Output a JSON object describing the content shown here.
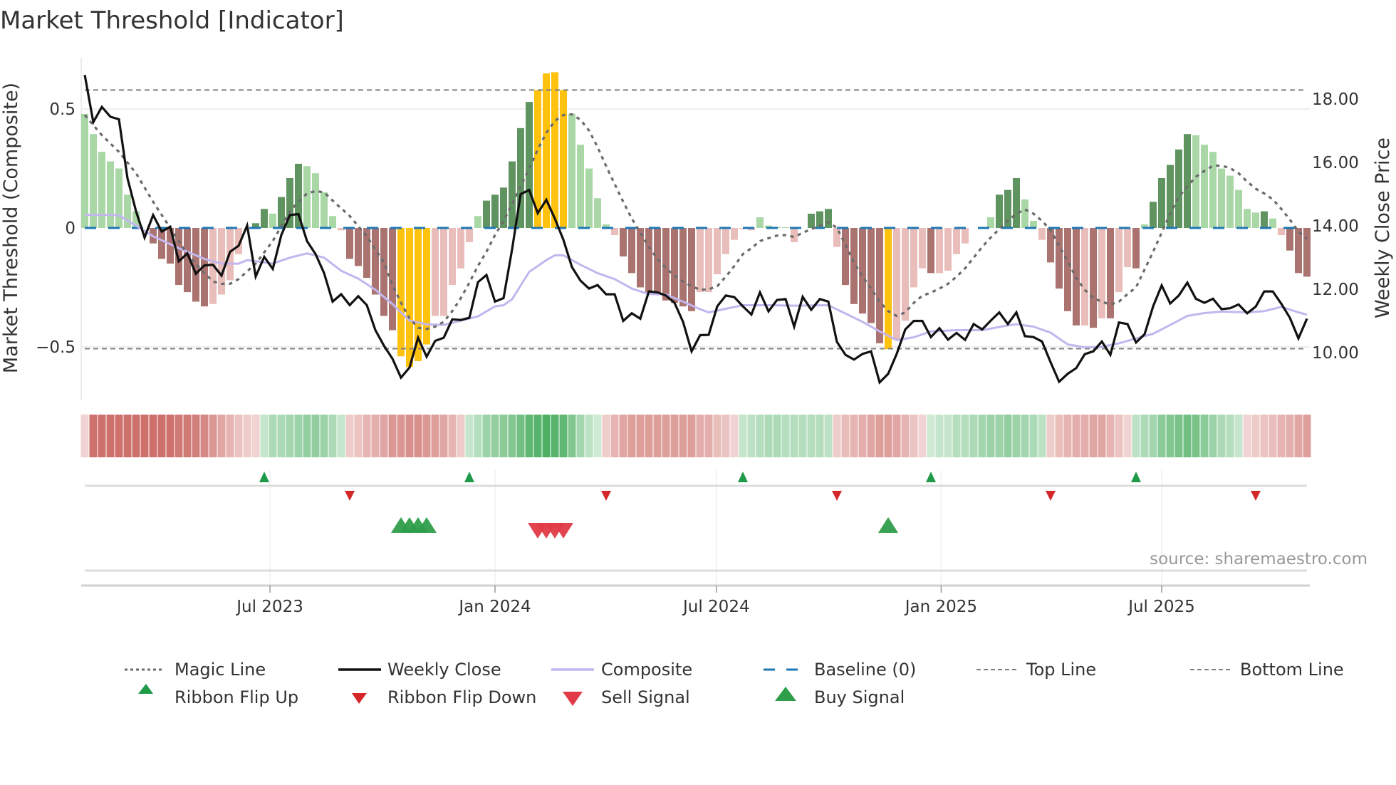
{
  "title": "Market Threshold [Indicator]",
  "source": "source: sharemaestro.com",
  "chart_data": {
    "type": "bar",
    "title": "Market Threshold [Indicator]",
    "x_unit": "week index",
    "xlabel": "",
    "ylabel_left": "Market Threshold (Composite)",
    "ylabel_right": "Weekly Close Price",
    "ylim_left": [
      -0.725,
      0.716
    ],
    "ylim_right": [
      8.49,
      19.3
    ],
    "left_ticks": [
      {
        "v": 0.5,
        "label": "0.5"
      },
      {
        "v": 0,
        "label": "0"
      },
      {
        "v": -0.5,
        "label": "−0.5"
      }
    ],
    "right_ticks": [
      {
        "v": 18,
        "label": "18.00"
      },
      {
        "v": 16,
        "label": "16.00"
      },
      {
        "v": 14,
        "label": "14.00"
      },
      {
        "v": 12,
        "label": "12.00"
      },
      {
        "v": 10,
        "label": "10.00"
      }
    ],
    "x_ticks": [
      {
        "v": 21.67,
        "label": "Jul 2023"
      },
      {
        "v": 48,
        "label": "Jan 2024"
      },
      {
        "v": 73.9,
        "label": "Jul 2024"
      },
      {
        "v": 100.2,
        "label": "Jan 2025"
      },
      {
        "v": 126,
        "label": "Jul 2025"
      }
    ],
    "top_line": 0.58,
    "bottom_line": -0.508,
    "baseline": 0,
    "colors": {
      "g": "#a9d8a6",
      "G": "#5f9460",
      "r": "#e9bdb9",
      "R": "#aa7370",
      "Y": "#ffc20e",
      "n": "#ffffff",
      "close": "#111111",
      "composite": "#c3b6ee",
      "magic": "#6b6b6b",
      "baseline": "#1f77b4",
      "bounds": "#808080",
      "flip_up": "#1e9a48",
      "flip_down": "#d62728",
      "buy": "#2e9e4a",
      "sell": "#e23b47"
    },
    "composite_bars": [
      0.48,
      0.395,
      0.32,
      0.28,
      0.25,
      0.14,
      0.07,
      0,
      -0.065,
      -0.13,
      -0.15,
      -0.24,
      -0.27,
      -0.31,
      -0.33,
      -0.32,
      -0.28,
      -0.22,
      -0.11,
      0,
      0.02,
      0.08,
      0.06,
      0.13,
      0.21,
      0.27,
      0.26,
      0.23,
      0.15,
      0.05,
      -0.01,
      -0.13,
      -0.16,
      -0.21,
      -0.28,
      -0.37,
      -0.43,
      -0.54,
      -0.585,
      -0.56,
      -0.49,
      -0.37,
      -0.37,
      -0.24,
      -0.17,
      -0.06,
      0.05,
      0.115,
      0.14,
      0.17,
      0.28,
      0.42,
      0.53,
      0.58,
      0.65,
      0.655,
      0.58,
      0.48,
      0.35,
      0.25,
      0.125,
      0.015,
      -0.03,
      -0.12,
      -0.19,
      -0.25,
      -0.27,
      -0.275,
      -0.305,
      -0.315,
      -0.33,
      -0.35,
      -0.27,
      -0.27,
      -0.195,
      -0.11,
      -0.05,
      -0.005,
      -0.01,
      0.045,
      0.01,
      0.005,
      0.003,
      -0.06,
      0,
      0.06,
      0.07,
      0.08,
      -0.08,
      -0.24,
      -0.32,
      -0.36,
      -0.4,
      -0.485,
      -0.51,
      -0.47,
      -0.39,
      -0.25,
      -0.17,
      -0.19,
      -0.19,
      -0.18,
      -0.11,
      -0.065,
      0,
      0,
      0.045,
      0.14,
      0.16,
      0.21,
      0.12,
      0.03,
      -0.05,
      -0.145,
      -0.255,
      -0.35,
      -0.41,
      -0.41,
      -0.42,
      -0.38,
      -0.38,
      -0.27,
      -0.165,
      -0.17,
      0.015,
      0.11,
      0.21,
      0.265,
      0.33,
      0.395,
      0.39,
      0.35,
      0.32,
      0.25,
      0.22,
      0.16,
      0.08,
      0.065,
      0.07,
      0.04,
      -0.03,
      -0.095,
      -0.19,
      -0.205
    ],
    "bar_classes": "gggggggnRRRRRRRrrrrnGGgGGGggggrRRRRRRYYYYrrrrrgGGGGGGYYYYgggggrRRRRRRRRRrrrrrrrggggrnGGGrRRRRRYrrrrRrrrrnngGGGggrRRRRrRrRrrRgGGGGGggggggggGgrRRR",
    "weekly_close": [
      18.76,
      17.27,
      17.75,
      17.44,
      17.36,
      15.5,
      14.46,
      13.63,
      14.34,
      13.82,
      13.97,
      12.88,
      13.13,
      12.49,
      12.75,
      12.77,
      12.43,
      13.18,
      13.37,
      14.01,
      12.4,
      13.02,
      12.64,
      13.71,
      14.34,
      14.37,
      13.52,
      13.11,
      12.51,
      11.61,
      11.84,
      11.5,
      11.78,
      11.5,
      10.71,
      10.22,
      9.81,
      9.21,
      9.53,
      10.47,
      9.87,
      10.37,
      10.47,
      11.05,
      11.03,
      11.1,
      12.22,
      12.45,
      11.61,
      11.72,
      13.26,
      15.0,
      15.13,
      14.4,
      14.82,
      14.23,
      13.56,
      12.7,
      12.27,
      12.02,
      12.13,
      11.84,
      11.84,
      11.0,
      11.24,
      11.07,
      11.93,
      11.9,
      11.8,
      11.57,
      10.97,
      10.04,
      10.55,
      10.56,
      11.46,
      11.8,
      11.75,
      11.46,
      11.2,
      11.9,
      11.3,
      11.66,
      11.69,
      10.82,
      11.76,
      11.35,
      11.69,
      11.61,
      10.34,
      9.93,
      9.78,
      9.96,
      10.04,
      9.06,
      9.33,
      9.96,
      10.73,
      11.0,
      11.0,
      10.49,
      10.77,
      10.41,
      10.62,
      10.4,
      10.9,
      10.73,
      11.01,
      11.27,
      10.9,
      11.27,
      10.52,
      10.49,
      10.35,
      9.7,
      9.08,
      9.33,
      9.51,
      9.95,
      10.04,
      10.35,
      9.93,
      10.95,
      10.9,
      10.32,
      10.58,
      11.46,
      12.12,
      11.55,
      11.8,
      12.21,
      11.7,
      11.57,
      11.7,
      11.37,
      11.4,
      11.52,
      11.24,
      11.45,
      11.93,
      11.93,
      11.54,
      11.1,
      10.45,
      11.07
    ],
    "composite_line": [
      [
        0,
        0.055
      ],
      [
        3,
        0.055
      ],
      [
        4,
        0.053
      ],
      [
        6,
        0.01
      ],
      [
        8,
        -0.035
      ],
      [
        11,
        -0.085
      ],
      [
        14,
        -0.13
      ],
      [
        16,
        -0.15
      ],
      [
        18,
        -0.15
      ],
      [
        19,
        -0.135
      ],
      [
        21,
        -0.145
      ],
      [
        22,
        -0.15
      ],
      [
        24,
        -0.125
      ],
      [
        26,
        -0.107
      ],
      [
        28,
        -0.125
      ],
      [
        30,
        -0.18
      ],
      [
        32,
        -0.213
      ],
      [
        34,
        -0.26
      ],
      [
        36,
        -0.32
      ],
      [
        38,
        -0.39
      ],
      [
        40,
        -0.405
      ],
      [
        42,
        -0.408
      ],
      [
        44,
        -0.39
      ],
      [
        46,
        -0.372
      ],
      [
        48,
        -0.33
      ],
      [
        49,
        -0.325
      ],
      [
        50,
        -0.3
      ],
      [
        52,
        -0.185
      ],
      [
        54,
        -0.135
      ],
      [
        55,
        -0.115
      ],
      [
        56,
        -0.115
      ],
      [
        58,
        -0.155
      ],
      [
        60,
        -0.19
      ],
      [
        62,
        -0.215
      ],
      [
        64,
        -0.255
      ],
      [
        66,
        -0.278
      ],
      [
        68,
        -0.28
      ],
      [
        70,
        -0.31
      ],
      [
        72,
        -0.342
      ],
      [
        73,
        -0.355
      ],
      [
        75,
        -0.34
      ],
      [
        77,
        -0.325
      ],
      [
        80,
        -0.325
      ],
      [
        83,
        -0.327
      ],
      [
        87,
        -0.325
      ],
      [
        89,
        -0.36
      ],
      [
        91,
        -0.395
      ],
      [
        93,
        -0.435
      ],
      [
        95,
        -0.472
      ],
      [
        97,
        -0.46
      ],
      [
        99,
        -0.435
      ],
      [
        102,
        -0.43
      ],
      [
        105,
        -0.43
      ],
      [
        108,
        -0.41
      ],
      [
        109,
        -0.405
      ],
      [
        111,
        -0.415
      ],
      [
        113,
        -0.44
      ],
      [
        115,
        -0.49
      ],
      [
        117,
        -0.502
      ],
      [
        119,
        -0.5
      ],
      [
        121,
        -0.485
      ],
      [
        123,
        -0.465
      ],
      [
        125,
        -0.445
      ],
      [
        127,
        -0.408
      ],
      [
        129,
        -0.37
      ],
      [
        131,
        -0.358
      ],
      [
        133,
        -0.352
      ],
      [
        136,
        -0.355
      ],
      [
        138,
        -0.35
      ],
      [
        140,
        -0.332
      ],
      [
        142,
        -0.355
      ],
      [
        143,
        -0.365
      ]
    ],
    "magic_line": [
      [
        0,
        0.475
      ],
      [
        2,
        0.39
      ],
      [
        4,
        0.32
      ],
      [
        6,
        0.23
      ],
      [
        8,
        0.11
      ],
      [
        10,
        0
      ],
      [
        12,
        -0.11
      ],
      [
        14,
        -0.19
      ],
      [
        15,
        -0.225
      ],
      [
        16,
        -0.235
      ],
      [
        17,
        -0.235
      ],
      [
        18,
        -0.215
      ],
      [
        20,
        -0.15
      ],
      [
        22,
        -0.055
      ],
      [
        24,
        0.07
      ],
      [
        25,
        0.11
      ],
      [
        26,
        0.145
      ],
      [
        27,
        0.155
      ],
      [
        28,
        0.15
      ],
      [
        29,
        0.115
      ],
      [
        31,
        0.05
      ],
      [
        33,
        -0.035
      ],
      [
        35,
        -0.145
      ],
      [
        36,
        -0.24
      ],
      [
        37,
        -0.315
      ],
      [
        38,
        -0.38
      ],
      [
        39,
        -0.42
      ],
      [
        40,
        -0.425
      ],
      [
        41,
        -0.415
      ],
      [
        42,
        -0.395
      ],
      [
        43,
        -0.35
      ],
      [
        44,
        -0.295
      ],
      [
        45,
        -0.23
      ],
      [
        46,
        -0.16
      ],
      [
        47,
        -0.1
      ],
      [
        48,
        -0.03
      ],
      [
        49,
        0.03
      ],
      [
        50,
        0.1
      ],
      [
        51,
        0.175
      ],
      [
        52,
        0.25
      ],
      [
        53,
        0.33
      ],
      [
        54,
        0.4
      ],
      [
        55,
        0.45
      ],
      [
        56,
        0.475
      ],
      [
        57,
        0.478
      ],
      [
        58,
        0.455
      ],
      [
        59,
        0.41
      ],
      [
        60,
        0.34
      ],
      [
        61,
        0.26
      ],
      [
        62,
        0.185
      ],
      [
        63,
        0.11
      ],
      [
        64,
        0.04
      ],
      [
        65,
        -0.02
      ],
      [
        66,
        -0.08
      ],
      [
        67,
        -0.13
      ],
      [
        68,
        -0.17
      ],
      [
        69,
        -0.2
      ],
      [
        70,
        -0.225
      ],
      [
        71,
        -0.245
      ],
      [
        72,
        -0.26
      ],
      [
        73,
        -0.258
      ],
      [
        74,
        -0.245
      ],
      [
        75,
        -0.205
      ],
      [
        76,
        -0.16
      ],
      [
        77,
        -0.11
      ],
      [
        78,
        -0.085
      ],
      [
        79,
        -0.055
      ],
      [
        80,
        -0.043
      ],
      [
        81,
        -0.032
      ],
      [
        82,
        -0.03
      ],
      [
        83,
        -0.038
      ],
      [
        84,
        -0.02
      ],
      [
        85,
        -0.005
      ],
      [
        86,
        0.01
      ],
      [
        87,
        0.025
      ],
      [
        88,
        0.0
      ],
      [
        89,
        -0.07
      ],
      [
        90,
        -0.145
      ],
      [
        91,
        -0.205
      ],
      [
        92,
        -0.255
      ],
      [
        93,
        -0.31
      ],
      [
        94,
        -0.35
      ],
      [
        95,
        -0.37
      ],
      [
        96,
        -0.355
      ],
      [
        97,
        -0.315
      ],
      [
        98,
        -0.285
      ],
      [
        99,
        -0.272
      ],
      [
        100,
        -0.255
      ],
      [
        101,
        -0.235
      ],
      [
        102,
        -0.205
      ],
      [
        103,
        -0.17
      ],
      [
        104,
        -0.125
      ],
      [
        105,
        -0.08
      ],
      [
        106,
        -0.04
      ],
      [
        107,
        -0.005
      ],
      [
        108,
        0.03
      ],
      [
        109,
        0.06
      ],
      [
        110,
        0.078
      ],
      [
        111,
        0.06
      ],
      [
        112,
        0.03
      ],
      [
        113,
        -0.01
      ],
      [
        114,
        -0.075
      ],
      [
        115,
        -0.14
      ],
      [
        116,
        -0.21
      ],
      [
        117,
        -0.26
      ],
      [
        118,
        -0.295
      ],
      [
        119,
        -0.31
      ],
      [
        120,
        -0.322
      ],
      [
        121,
        -0.31
      ],
      [
        122,
        -0.278
      ],
      [
        123,
        -0.25
      ],
      [
        124,
        -0.175
      ],
      [
        125,
        -0.1
      ],
      [
        126,
        -0.02
      ],
      [
        127,
        0.06
      ],
      [
        128,
        0.13
      ],
      [
        129,
        0.175
      ],
      [
        130,
        0.215
      ],
      [
        131,
        0.24
      ],
      [
        132,
        0.262
      ],
      [
        133,
        0.262
      ],
      [
        134,
        0.252
      ],
      [
        135,
        0.23
      ],
      [
        136,
        0.195
      ],
      [
        137,
        0.165
      ],
      [
        138,
        0.145
      ],
      [
        139,
        0.12
      ],
      [
        140,
        0.08
      ],
      [
        141,
        0.035
      ],
      [
        142,
        -0.015
      ],
      [
        143,
        -0.045
      ]
    ],
    "ribbon": [
      -0.15,
      -0.8,
      -0.8,
      -0.8,
      -0.8,
      -0.8,
      -0.8,
      -0.8,
      -0.8,
      -0.8,
      -0.8,
      -0.75,
      -0.75,
      -0.7,
      -0.65,
      -0.55,
      -0.45,
      -0.35,
      -0.25,
      -0.2,
      -0.15,
      0.2,
      0.35,
      0.35,
      0.4,
      0.45,
      0.5,
      0.5,
      0.45,
      0.35,
      0.2,
      -0.2,
      -0.25,
      -0.35,
      -0.4,
      -0.45,
      -0.55,
      -0.55,
      -0.6,
      -0.6,
      -0.55,
      -0.5,
      -0.45,
      -0.35,
      -0.2,
      0.2,
      0.3,
      0.45,
      0.5,
      0.55,
      0.6,
      0.7,
      0.8,
      0.85,
      0.9,
      0.85,
      0.8,
      0.6,
      0.4,
      0.25,
      0.15,
      -0.2,
      -0.35,
      -0.45,
      -0.5,
      -0.5,
      -0.5,
      -0.5,
      -0.5,
      -0.5,
      -0.5,
      -0.5,
      -0.4,
      -0.4,
      -0.3,
      -0.25,
      -0.15,
      0.2,
      0.25,
      0.3,
      0.35,
      0.35,
      0.3,
      0.3,
      0.3,
      0.3,
      0.3,
      0.25,
      -0.2,
      -0.3,
      -0.35,
      -0.4,
      -0.45,
      -0.5,
      -0.5,
      -0.45,
      -0.35,
      -0.25,
      -0.15,
      0.15,
      0.2,
      0.2,
      0.3,
      0.3,
      0.35,
      0.4,
      0.45,
      0.45,
      0.5,
      0.45,
      0.4,
      0.35,
      0.25,
      -0.2,
      -0.3,
      -0.35,
      -0.4,
      -0.4,
      -0.45,
      -0.45,
      -0.35,
      -0.25,
      -0.15,
      0.25,
      0.35,
      0.4,
      0.55,
      0.6,
      0.65,
      0.7,
      0.65,
      0.55,
      0.45,
      0.35,
      0.3,
      0.2,
      -0.15,
      -0.2,
      -0.25,
      -0.3,
      -0.35,
      -0.4,
      -0.45,
      -0.5
    ],
    "ribbon_flip_up": [
      21,
      45,
      77,
      99,
      123
    ],
    "ribbon_flip_down": [
      31,
      61,
      88,
      113,
      137
    ],
    "buy_signals": [
      37,
      38,
      39,
      40,
      94
    ],
    "sell_signals": [
      53,
      54,
      55,
      56
    ],
    "legend": {
      "placement": "bottom",
      "items": [
        {
          "label": "Magic Line"
        },
        {
          "label": "Weekly Close"
        },
        {
          "label": "Composite"
        },
        {
          "label": "Baseline (0)"
        },
        {
          "label": "Top Line"
        },
        {
          "label": "Bottom Line"
        },
        {
          "label": "Ribbon Flip Up"
        },
        {
          "label": "Ribbon Flip Down"
        },
        {
          "label": "Sell Signal"
        },
        {
          "label": "Buy Signal"
        }
      ]
    }
  }
}
